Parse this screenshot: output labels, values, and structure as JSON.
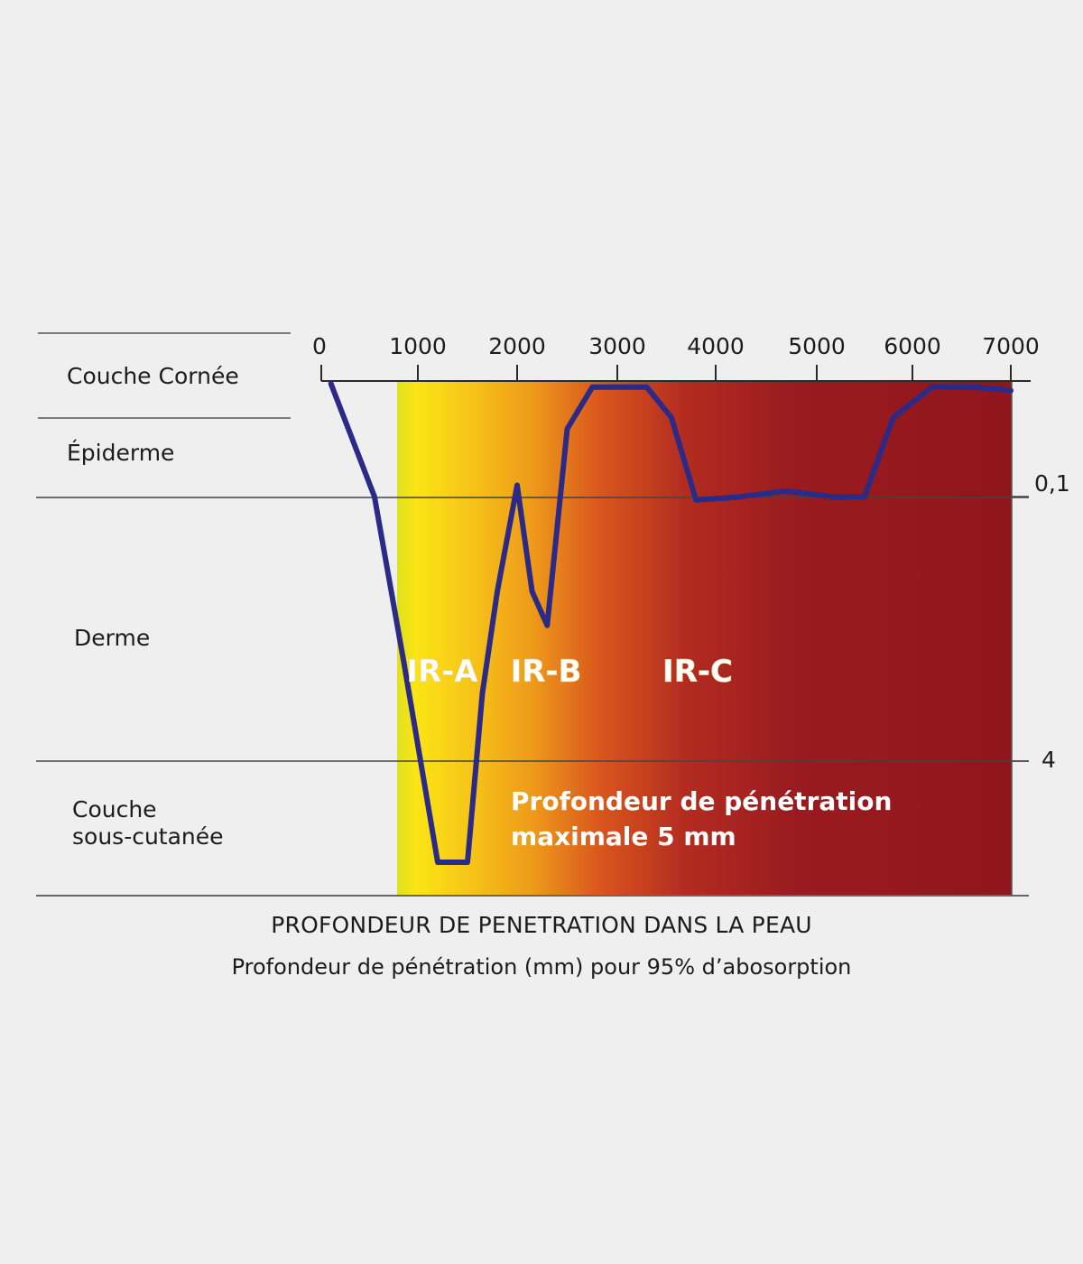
{
  "chart_data": {
    "type": "line",
    "title": "PROFONDEUR DE PENETRATION DANS LA PEAU",
    "subtitle": "Profondeur de pénétration (mm) pour 95% d’abosorption",
    "x_ticks": [
      {
        "value": 0,
        "label": "0"
      },
      {
        "value": 1000,
        "label": "1000"
      },
      {
        "value": 2000,
        "label": "2000"
      },
      {
        "value": 3000,
        "label": "3000"
      },
      {
        "value": 4000,
        "label": "4000"
      },
      {
        "value": 5000,
        "label": "5000"
      },
      {
        "value": 6000,
        "label": "6000"
      },
      {
        "value": 7000,
        "label": "7000"
      }
    ],
    "xlim": [
      0,
      7000
    ],
    "depth_ticks": [
      {
        "value": 0.1,
        "label": "0,1"
      },
      {
        "value": 4,
        "label": "4"
      }
    ],
    "layers": [
      {
        "name": "Couche Cornée"
      },
      {
        "name": "Épiderme"
      },
      {
        "name": "Derme"
      },
      {
        "name": "Couche\nsous-cutanée"
      }
    ],
    "bands": [
      {
        "name": "IR-A",
        "color": "#f5e21a"
      },
      {
        "name": "IR-B",
        "color": "#f0a21c"
      },
      {
        "name": "IR-C",
        "color": "#9c1a1f"
      }
    ],
    "gradient_colors": [
      "#dde21e",
      "#fbe515",
      "#f6c418",
      "#ee9a1a",
      "#d9561d",
      "#b32b20",
      "#991b1f",
      "#8f161c"
    ],
    "annotation": "Profondeur de pénétration\nmaximale 5 mm",
    "grid": true,
    "series": [
      {
        "color": "#2b2a87",
        "points": [
          [
            100,
            0
          ],
          [
            550,
            0.1
          ],
          [
            850,
            2.5
          ],
          [
            1200,
            5.0
          ],
          [
            1500,
            5.0
          ],
          [
            1650,
            3.0
          ],
          [
            1800,
            1.5
          ],
          [
            2000,
            0.09
          ],
          [
            2150,
            1.5
          ],
          [
            2300,
            2.0
          ],
          [
            2500,
            0.04
          ],
          [
            2750,
            0.003
          ],
          [
            3000,
            0.003
          ],
          [
            3300,
            0.003
          ],
          [
            3550,
            0.03
          ],
          [
            3800,
            0.15
          ],
          [
            4200,
            0.11
          ],
          [
            4700,
            0.095
          ],
          [
            5200,
            0.11
          ],
          [
            5500,
            0.1
          ],
          [
            5800,
            0.03
          ],
          [
            6200,
            0.003
          ],
          [
            6600,
            0.003
          ],
          [
            6900,
            0.005
          ],
          [
            7000,
            0.006
          ]
        ]
      }
    ]
  }
}
